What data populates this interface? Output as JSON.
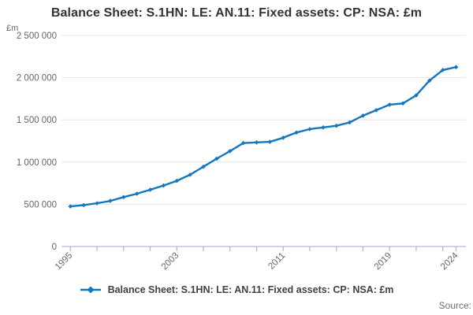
{
  "header": {
    "title": "Balance Sheet: S.1HN: LE: AN.11: Fixed assets: CP: NSA: £m"
  },
  "chart_data": {
    "type": "line",
    "title": "Balance Sheet: S.1HN: LE: AN.11: Fixed assets: CP: NSA: £m",
    "y_unit_label": "£m",
    "xlabel": "",
    "ylabel": "£m",
    "x": [
      1995,
      1996,
      1997,
      1998,
      1999,
      2000,
      2001,
      2002,
      2003,
      2004,
      2005,
      2006,
      2007,
      2008,
      2009,
      2010,
      2011,
      2012,
      2013,
      2014,
      2015,
      2016,
      2017,
      2018,
      2019,
      2020,
      2021,
      2022,
      2023,
      2024
    ],
    "series": [
      {
        "name": "Balance Sheet: S.1HN: LE: AN.11: Fixed assets: CP: NSA: £m",
        "values": [
          475000,
          490000,
          512000,
          540000,
          585000,
          625000,
          672000,
          722000,
          778000,
          850000,
          945000,
          1040000,
          1130000,
          1225000,
          1233000,
          1240000,
          1288000,
          1350000,
          1390000,
          1410000,
          1430000,
          1470000,
          1550000,
          1615000,
          1680000,
          1695000,
          1790000,
          1965000,
          2090000,
          2125000
        ]
      }
    ],
    "ylim": [
      0,
      2500000
    ],
    "ytick_interval": 500000,
    "ytick_labels": [
      "0",
      "500 000",
      "1 000 000",
      "1 500 000",
      "2 000 000",
      "2 500 000"
    ],
    "xtick_interval_years": 2,
    "xtick_labeled_years": [
      1995,
      2003,
      2011,
      2019,
      2024
    ],
    "grid": "horizontal",
    "legend_position": "bottom"
  },
  "legend": {
    "label": "Balance Sheet: S.1HN: LE: AN.11: Fixed assets: CP: NSA: £m"
  },
  "footer": {
    "source_label": "Source:"
  },
  "colors": {
    "line": "#1377be",
    "grid": "#e6e6e6",
    "axis": "#aebdd7",
    "tick_label": "#666666",
    "title_text": "#333333",
    "legend_text": "#414042",
    "source_text": "#6e6e6e"
  }
}
